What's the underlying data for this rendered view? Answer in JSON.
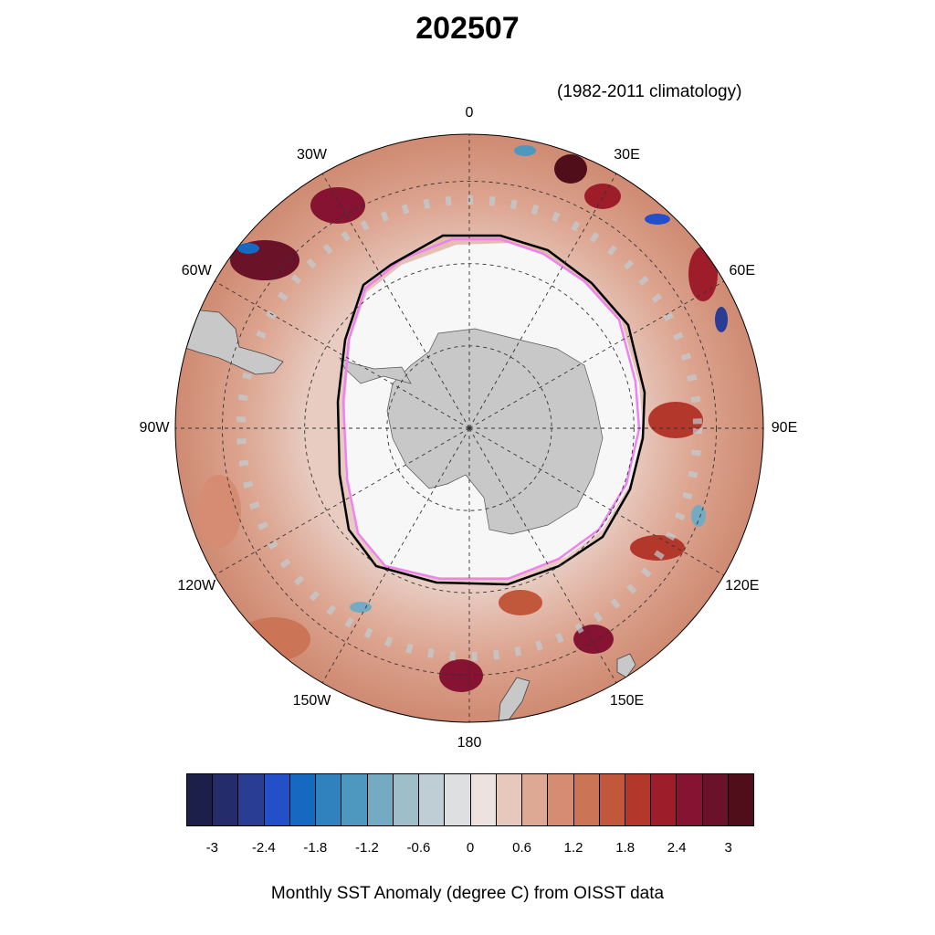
{
  "title": "202507",
  "subtitle": "(1982-2011 climatology)",
  "caption": "Monthly SST Anomaly (degree C) from OISST data",
  "map": {
    "projection": "south-polar-stereographic",
    "longitude_labels": [
      {
        "text": "0",
        "lon": 0
      },
      {
        "text": "30E",
        "lon": 30
      },
      {
        "text": "60E",
        "lon": 60
      },
      {
        "text": "90E",
        "lon": 90
      },
      {
        "text": "120E",
        "lon": 120
      },
      {
        "text": "150E",
        "lon": 150
      },
      {
        "text": "180",
        "lon": 180
      },
      {
        "text": "150W",
        "lon": -150
      },
      {
        "text": "120W",
        "lon": -120
      },
      {
        "text": "90W",
        "lon": -90
      },
      {
        "text": "60W",
        "lon": -60
      },
      {
        "text": "30W",
        "lon": -30
      }
    ],
    "ocean_color": "#e3c1b5",
    "land_color": "#c8c8c8",
    "sea_ice_color": "#f7f7f7",
    "ice_edge_colors": {
      "observed": "#000000",
      "climatology": "#ee82ee"
    }
  },
  "colorbar": {
    "colors": [
      "#1c1f4a",
      "#242c6b",
      "#2a3d94",
      "#2350c8",
      "#1668c0",
      "#2f82bd",
      "#4e98c0",
      "#74abc2",
      "#9ebec9",
      "#bfcdd4",
      "#dedfe1",
      "#eee2df",
      "#e6c8bc",
      "#dda894",
      "#d58c73",
      "#cc7456",
      "#c1573b",
      "#b3382b",
      "#9e1d2b",
      "#851331",
      "#691228",
      "#4f0e1a"
    ],
    "tick_labels": [
      "-3",
      "-2.4",
      "-1.8",
      "-1.2",
      "-0.6",
      "0",
      "0.6",
      "1.2",
      "1.8",
      "2.4",
      "3"
    ]
  }
}
